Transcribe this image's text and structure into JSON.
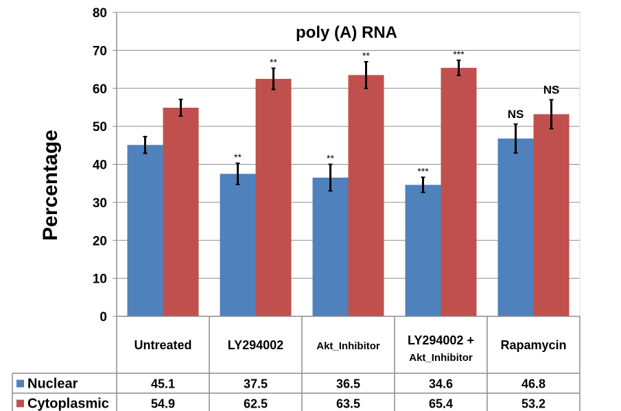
{
  "chart_data": {
    "type": "bar",
    "title": "poly (A) RNA",
    "ylabel": "Percentage",
    "xlabel": "",
    "ylim": [
      0,
      80
    ],
    "yticks": [
      "0",
      "10",
      "20",
      "30",
      "40",
      "50",
      "60",
      "70",
      "80"
    ],
    "grid": true,
    "categories": [
      "Untreated",
      "LY294002",
      "Akt_Inhibitor",
      "LY294002 + Akt_Inhibitor",
      "Rapamycin"
    ],
    "series": [
      {
        "name": "Nuclear",
        "color": "#4F81BD",
        "values": [
          45.1,
          37.5,
          36.5,
          34.6,
          46.8
        ],
        "value_labels": [
          "45.1",
          "37.5",
          "36.5",
          "34.6",
          "46.8"
        ],
        "error": [
          2.2,
          2.8,
          3.5,
          2.0,
          3.8
        ],
        "significance": [
          "",
          "**",
          "**",
          "***",
          "NS"
        ]
      },
      {
        "name": "Cytoplasmic",
        "color": "#C0504D",
        "values": [
          54.9,
          62.5,
          63.5,
          65.4,
          53.2
        ],
        "value_labels": [
          "54.9",
          "62.5",
          "63.5",
          "65.4",
          "53.2"
        ],
        "error": [
          2.2,
          2.8,
          3.5,
          2.0,
          3.8
        ],
        "significance": [
          "",
          "**",
          "**",
          "***",
          "NS"
        ]
      }
    ],
    "legend_placement": "data-table"
  }
}
